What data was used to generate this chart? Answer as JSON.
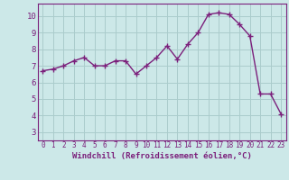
{
  "x": [
    0,
    1,
    2,
    3,
    4,
    5,
    6,
    7,
    8,
    9,
    10,
    11,
    12,
    13,
    14,
    15,
    16,
    17,
    18,
    19,
    20,
    21,
    22,
    23
  ],
  "y": [
    6.7,
    6.8,
    7.0,
    7.3,
    7.5,
    7.0,
    7.0,
    7.3,
    7.3,
    6.5,
    7.0,
    7.5,
    8.2,
    7.4,
    8.3,
    9.0,
    10.1,
    10.2,
    10.1,
    9.5,
    8.8,
    5.3,
    5.3,
    4.1
  ],
  "line_color": "#7B1F7B",
  "marker": "+",
  "markersize": 4,
  "markeredgewidth": 1.0,
  "linewidth": 1.0,
  "background_color": "#cce8e8",
  "grid_color": "#aacccc",
  "xlabel": "Windchill (Refroidissement éolien,°C)",
  "xlim": [
    -0.5,
    23.5
  ],
  "ylim": [
    2.5,
    10.75
  ],
  "yticks": [
    3,
    4,
    5,
    6,
    7,
    8,
    9,
    10
  ],
  "xticks": [
    0,
    1,
    2,
    3,
    4,
    5,
    6,
    7,
    8,
    9,
    10,
    11,
    12,
    13,
    14,
    15,
    16,
    17,
    18,
    19,
    20,
    21,
    22,
    23
  ],
  "tick_color": "#7B1F7B",
  "spine_color": "#7B1F7B",
  "xlabel_fontsize": 6.5,
  "tick_fontsize_x": 5.5,
  "tick_fontsize_y": 6.5
}
